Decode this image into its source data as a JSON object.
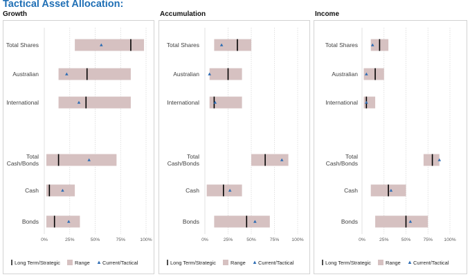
{
  "page_title": "Tactical Asset Allocation:",
  "legend": {
    "strategic": "Long Term/Strategic",
    "range": "Range",
    "tactical": "Current/Tactical"
  },
  "colors": {
    "title": "#1f6fb5",
    "range_bar": "#d6c1c1",
    "strategic_marker": "#000000",
    "tactical_marker": "#2e6db4",
    "grid": "#d9d9d9"
  },
  "chart_data": [
    {
      "type": "range-bar",
      "title": "Growth",
      "xlim": [
        0,
        100
      ],
      "x_ticks": [
        "0%",
        "25%",
        "50%",
        "75%",
        "100%"
      ],
      "categories": [
        "Total Shares",
        "Australian",
        "International",
        "Total Cash/Bonds",
        "Cash",
        "Bonds"
      ],
      "range_min": [
        30,
        14,
        14,
        2,
        2,
        2
      ],
      "range_max": [
        98,
        85,
        85,
        71,
        30,
        35
      ],
      "strategic": [
        85,
        42,
        41,
        14,
        5,
        10
      ],
      "tactical": [
        56,
        22,
        34,
        44,
        18,
        24
      ]
    },
    {
      "type": "range-bar",
      "title": "Accumulation",
      "xlim": [
        0,
        100
      ],
      "x_ticks": [
        "0%",
        "25%",
        "50%",
        "75%",
        "100%"
      ],
      "categories": [
        "Total Shares",
        "Australian",
        "International",
        "Total Cash/Bonds",
        "Cash",
        "Bonds"
      ],
      "range_min": [
        10,
        5,
        5,
        50,
        2,
        10
      ],
      "range_max": [
        50,
        40,
        40,
        90,
        40,
        70
      ],
      "strategic": [
        35,
        25,
        10,
        65,
        20,
        45
      ],
      "tactical": [
        18,
        5,
        11,
        83,
        27,
        54
      ]
    },
    {
      "type": "range-bar",
      "title": "Income",
      "xlim": [
        0,
        100
      ],
      "x_ticks": [
        "0%",
        "25%",
        "50%",
        "75%",
        "100%"
      ],
      "categories": [
        "Total Shares",
        "Australian",
        "International",
        "Total Cash/Bonds",
        "Cash",
        "Bonds"
      ],
      "range_min": [
        10,
        2,
        2,
        70,
        10,
        15
      ],
      "range_max": [
        30,
        25,
        15,
        88,
        50,
        75
      ],
      "strategic": [
        20,
        15,
        5,
        80,
        30,
        50
      ],
      "tactical": [
        12,
        5,
        5,
        88,
        33,
        55
      ]
    }
  ]
}
